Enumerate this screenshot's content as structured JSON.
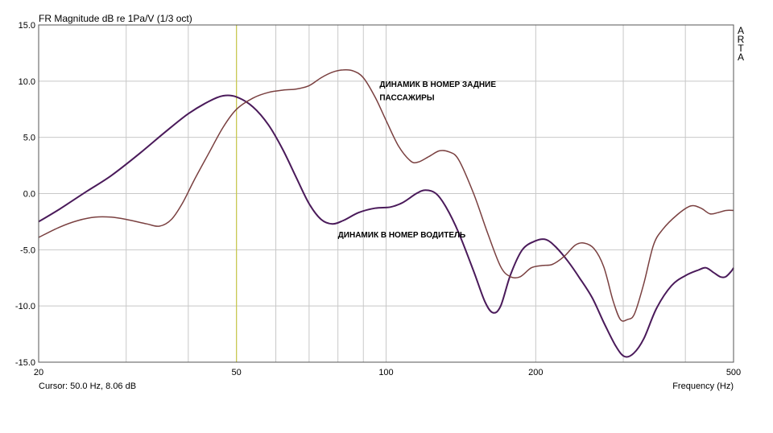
{
  "chart_data": {
    "type": "line",
    "title": "FR Magnitude dB re 1Pa/V (1/3 oct)",
    "xlabel": "Frequency (Hz)",
    "ylabel": "",
    "xscale": "log",
    "xlim": [
      20,
      500
    ],
    "ylim": [
      -15,
      15
    ],
    "x_ticks": [
      20,
      50,
      100,
      200,
      500
    ],
    "x_tick_labels": [
      "20",
      "50",
      "100",
      "200",
      "500"
    ],
    "x_minor_gridlines": [
      30,
      40,
      60,
      70,
      80,
      90,
      300,
      400
    ],
    "y_ticks": [
      15,
      10,
      5,
      0,
      -5,
      -10,
      -15
    ],
    "y_tick_labels": [
      "15.0",
      "10.0",
      "5.0",
      "0.0",
      "-5.0",
      "-10.0",
      "-15.0"
    ],
    "grid": true,
    "cursor": {
      "x": 50,
      "label": "Cursor: 50.0 Hz, 8.06 dB",
      "color": "#c8c84a"
    },
    "brand": [
      "A",
      "R",
      "T",
      "A"
    ],
    "annotations": [
      {
        "text": "ДИНАМИК В НОМЕР ЗАДНИЕ",
        "x": 97,
        "y": 9.5
      },
      {
        "text": "ПАССАЖИРЫ",
        "x": 97,
        "y": 8.3
      },
      {
        "text": "ДИНАМИК В НОМЕР ВОДИТЕЛЬ",
        "x": 80,
        "y": -3.9
      }
    ],
    "series": [
      {
        "color": "#4a1a5a",
        "width": 2,
        "points": [
          [
            20,
            -2.5
          ],
          [
            22,
            -1.4
          ],
          [
            25,
            0.2
          ],
          [
            28,
            1.6
          ],
          [
            32,
            3.6
          ],
          [
            36,
            5.5
          ],
          [
            40,
            7.1
          ],
          [
            44,
            8.2
          ],
          [
            47,
            8.7
          ],
          [
            50,
            8.6
          ],
          [
            54,
            7.7
          ],
          [
            58,
            6.1
          ],
          [
            62,
            3.9
          ],
          [
            66,
            1.4
          ],
          [
            70,
            -0.9
          ],
          [
            74,
            -2.3
          ],
          [
            78,
            -2.7
          ],
          [
            82,
            -2.4
          ],
          [
            88,
            -1.7
          ],
          [
            95,
            -1.3
          ],
          [
            102,
            -1.2
          ],
          [
            108,
            -0.8
          ],
          [
            115,
            0.0
          ],
          [
            120,
            0.3
          ],
          [
            126,
            0.0
          ],
          [
            132,
            -1.2
          ],
          [
            140,
            -3.5
          ],
          [
            150,
            -6.9
          ],
          [
            158,
            -9.6
          ],
          [
            164,
            -10.6
          ],
          [
            170,
            -10.0
          ],
          [
            178,
            -7.2
          ],
          [
            188,
            -5.0
          ],
          [
            200,
            -4.2
          ],
          [
            210,
            -4.1
          ],
          [
            220,
            -4.8
          ],
          [
            232,
            -6.0
          ],
          [
            245,
            -7.5
          ],
          [
            260,
            -9.3
          ],
          [
            275,
            -11.6
          ],
          [
            290,
            -13.6
          ],
          [
            302,
            -14.5
          ],
          [
            315,
            -14.2
          ],
          [
            330,
            -12.9
          ],
          [
            350,
            -10.2
          ],
          [
            375,
            -8.2
          ],
          [
            400,
            -7.3
          ],
          [
            425,
            -6.8
          ],
          [
            440,
            -6.6
          ],
          [
            455,
            -7.0
          ],
          [
            470,
            -7.4
          ],
          [
            482,
            -7.4
          ],
          [
            495,
            -6.9
          ],
          [
            500,
            -6.6
          ]
        ]
      },
      {
        "color": "#7a4040",
        "width": 1.5,
        "points": [
          [
            20,
            -3.9
          ],
          [
            22,
            -3.0
          ],
          [
            24,
            -2.4
          ],
          [
            26,
            -2.1
          ],
          [
            28,
            -2.1
          ],
          [
            30,
            -2.3
          ],
          [
            33,
            -2.7
          ],
          [
            35,
            -2.9
          ],
          [
            37,
            -2.3
          ],
          [
            39,
            -0.8
          ],
          [
            41,
            1.1
          ],
          [
            44,
            3.6
          ],
          [
            47,
            5.9
          ],
          [
            50,
            7.5
          ],
          [
            54,
            8.5
          ],
          [
            58,
            9.0
          ],
          [
            62,
            9.2
          ],
          [
            66,
            9.3
          ],
          [
            70,
            9.6
          ],
          [
            74,
            10.3
          ],
          [
            78,
            10.8
          ],
          [
            82,
            11.0
          ],
          [
            86,
            10.9
          ],
          [
            90,
            10.3
          ],
          [
            95,
            8.6
          ],
          [
            100,
            6.5
          ],
          [
            106,
            4.2
          ],
          [
            112,
            2.9
          ],
          [
            116,
            2.8
          ],
          [
            122,
            3.3
          ],
          [
            128,
            3.8
          ],
          [
            134,
            3.7
          ],
          [
            140,
            3.0
          ],
          [
            150,
            0.0
          ],
          [
            160,
            -3.5
          ],
          [
            170,
            -6.5
          ],
          [
            178,
            -7.4
          ],
          [
            186,
            -7.4
          ],
          [
            196,
            -6.6
          ],
          [
            206,
            -6.4
          ],
          [
            216,
            -6.3
          ],
          [
            228,
            -5.6
          ],
          [
            240,
            -4.6
          ],
          [
            250,
            -4.4
          ],
          [
            262,
            -4.9
          ],
          [
            274,
            -6.5
          ],
          [
            286,
            -9.5
          ],
          [
            296,
            -11.2
          ],
          [
            306,
            -11.2
          ],
          [
            316,
            -10.7
          ],
          [
            330,
            -8.0
          ],
          [
            345,
            -4.6
          ],
          [
            360,
            -3.2
          ],
          [
            385,
            -1.9
          ],
          [
            410,
            -1.1
          ],
          [
            430,
            -1.3
          ],
          [
            448,
            -1.8
          ],
          [
            465,
            -1.7
          ],
          [
            483,
            -1.5
          ],
          [
            500,
            -1.5
          ]
        ]
      }
    ]
  }
}
